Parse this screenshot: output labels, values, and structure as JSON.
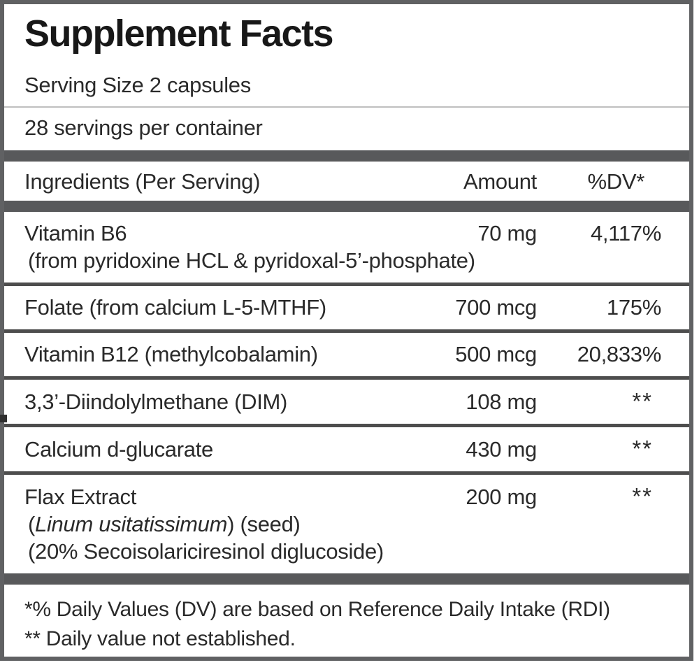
{
  "label": {
    "title": "Supplement Facts",
    "serving_size": "Serving Size 2 capsules",
    "servings_per_container": "28 servings per container",
    "columns": {
      "ingredient": "Ingredients (Per Serving)",
      "amount": "Amount",
      "dv": "%DV*"
    },
    "rows": [
      {
        "name": "Vitamin B6",
        "amount": "70 mg",
        "dv": "4,117%",
        "sub_lines": [
          [
            {
              "text": "(from pyridoxine HCL & pyridoxal-5’-phosphate)",
              "italic": false
            }
          ]
        ]
      },
      {
        "name": "Folate (from calcium L-5-MTHF)",
        "amount": "700 mcg",
        "dv": "175%",
        "sub_lines": []
      },
      {
        "name": "Vitamin B12 (methylcobalamin)",
        "amount": "500 mcg",
        "dv": "20,833%",
        "sub_lines": []
      },
      {
        "name": "3,3’-Diindolylmethane (DIM)",
        "amount": "108 mg",
        "dv": "**",
        "sub_lines": []
      },
      {
        "name": "Calcium d-glucarate",
        "amount": "430 mg",
        "dv": "**",
        "sub_lines": []
      },
      {
        "name": "Flax Extract",
        "amount": "200 mg",
        "dv": "**",
        "sub_lines": [
          [
            {
              "text": "(",
              "italic": false
            },
            {
              "text": "Linum usitatissimum",
              "italic": true
            },
            {
              "text": ") (seed)",
              "italic": false
            }
          ],
          [
            {
              "text": "(20% Secoisolariciresinol diglucoside)",
              "italic": false
            }
          ]
        ]
      }
    ],
    "footnotes": [
      "*% Daily Values (DV) are based on Reference Daily Intake (RDI)",
      "** Daily value not established."
    ],
    "colors": {
      "band": "#58595b",
      "border": "#606163",
      "separator": "#4d4d4d",
      "text": "#2a2a2a",
      "hairline": "#bfbfbf"
    }
  }
}
